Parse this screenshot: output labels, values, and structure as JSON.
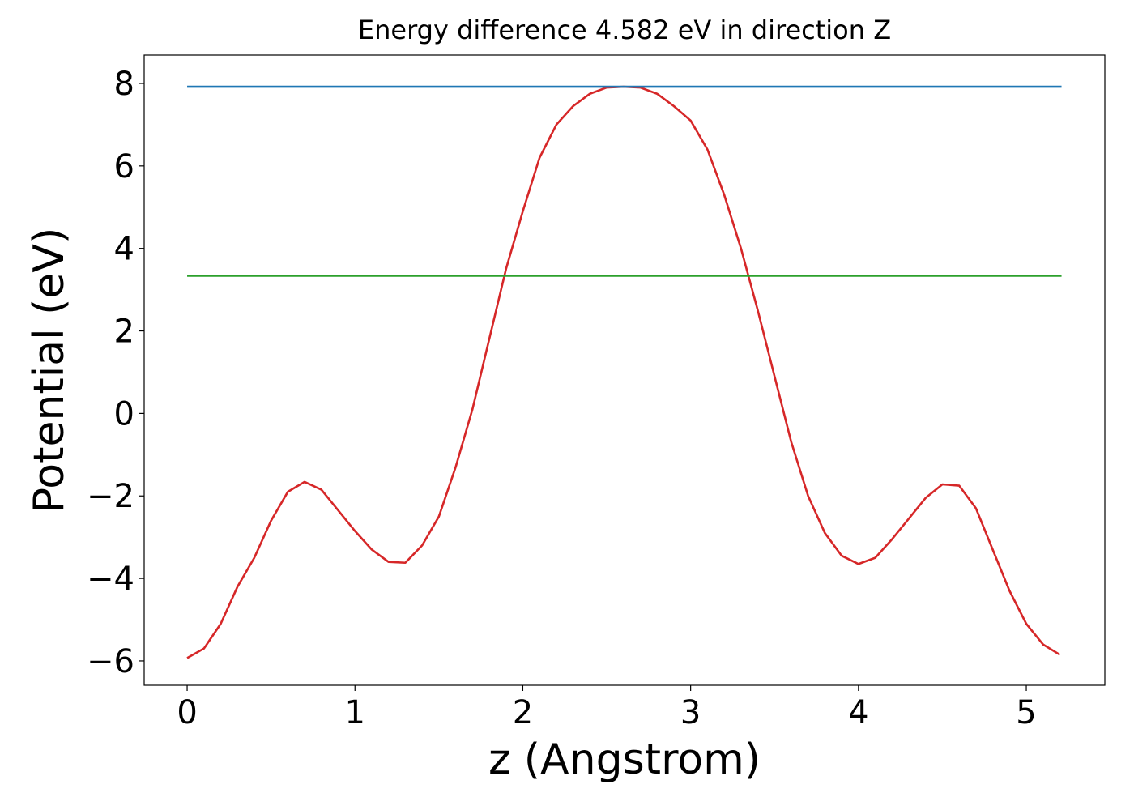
{
  "chart_data": {
    "type": "line",
    "title": "Energy difference 4.582 eV in direction Z",
    "xlabel": "z (Angstrom)",
    "ylabel": "Potential (eV)",
    "xlim": [
      -0.256,
      5.468
    ],
    "ylim": [
      -6.59,
      8.687
    ],
    "xticks": [
      0,
      1,
      2,
      3,
      4,
      5
    ],
    "yticks": [
      {
        "value": -6,
        "label": "−6"
      },
      {
        "value": -4,
        "label": "−4"
      },
      {
        "value": -2,
        "label": "−2"
      },
      0,
      2,
      4,
      6,
      8
    ],
    "grid": false,
    "series": [
      {
        "color": "#d62728",
        "x": [
          0,
          0.1,
          0.2,
          0.3,
          0.4,
          0.5,
          0.6,
          0.7,
          0.8,
          0.9,
          1.0,
          1.1,
          1.2,
          1.3,
          1.4,
          1.5,
          1.6,
          1.7,
          1.8,
          1.9,
          2.0,
          2.1,
          2.2,
          2.3,
          2.4,
          2.5,
          2.6,
          2.7,
          2.8,
          2.9,
          3.0,
          3.1,
          3.2,
          3.3,
          3.4,
          3.5,
          3.6,
          3.7,
          3.8,
          3.9,
          4.0,
          4.1,
          4.2,
          4.3,
          4.4,
          4.5,
          4.6,
          4.7,
          4.8,
          4.9,
          5.0,
          5.1,
          5.2
        ],
        "values": [
          -5.93,
          -5.7,
          -5.1,
          -4.2,
          -3.5,
          -2.6,
          -1.9,
          -1.66,
          -1.85,
          -2.35,
          -2.85,
          -3.3,
          -3.6,
          -3.62,
          -3.2,
          -2.5,
          -1.3,
          0.1,
          1.8,
          3.5,
          4.9,
          6.2,
          7.0,
          7.45,
          7.75,
          7.9,
          7.92,
          7.9,
          7.75,
          7.45,
          7.1,
          6.4,
          5.3,
          4.0,
          2.5,
          0.9,
          -0.7,
          -2.0,
          -2.9,
          -3.45,
          -3.65,
          -3.5,
          -3.05,
          -2.55,
          -2.05,
          -1.72,
          -1.75,
          -2.3,
          -3.3,
          -4.3,
          -5.1,
          -5.6,
          -5.85
        ]
      },
      {
        "color": "#1f77b4",
        "x": [
          0,
          5.21
        ],
        "values": [
          7.92,
          7.92
        ]
      },
      {
        "color": "#2ca02c",
        "x": [
          0,
          5.21
        ],
        "values": [
          3.338,
          3.338
        ]
      }
    ]
  }
}
